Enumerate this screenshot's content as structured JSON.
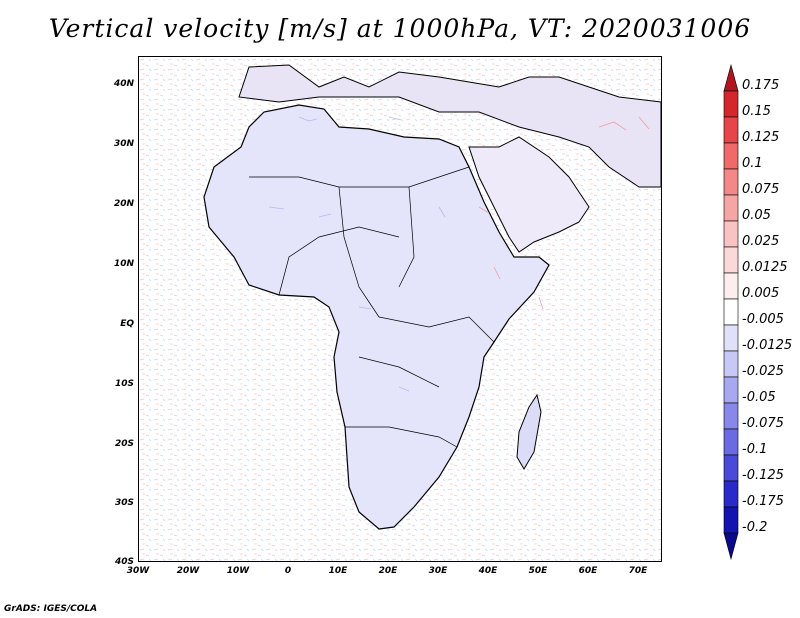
{
  "title": "Vertical velocity [m/s] at 1000hPa, VT: 2020031006",
  "footer": "GrADS: IGES/COLA",
  "map": {
    "region": "Africa",
    "longitude_ticks": [
      "30W",
      "20W",
      "10W",
      "0",
      "10E",
      "20E",
      "30E",
      "40E",
      "50E",
      "60E",
      "70E"
    ],
    "latitude_ticks": [
      "40N",
      "30N",
      "20N",
      "10N",
      "EQ",
      "10S",
      "20S",
      "30S",
      "40S"
    ]
  },
  "legend": {
    "levels": [
      "0.175",
      "0.15",
      "0.125",
      "0.1",
      "0.075",
      "0.05",
      "0.025",
      "0.0125",
      "0.005",
      "-0.005",
      "-0.0125",
      "-0.025",
      "-0.05",
      "-0.075",
      "-0.1",
      "-0.125",
      "-0.175",
      "-0.2"
    ],
    "colors": [
      "#b0141e",
      "#d4272d",
      "#e6464a",
      "#f06a6a",
      "#f28888",
      "#f6a5a5",
      "#f9c3c3",
      "#fbd9d9",
      "#fdeeee",
      "#ffffff",
      "#e0e0fb",
      "#c8c8f6",
      "#a8a8f0",
      "#8888ea",
      "#6a6ae2",
      "#4a4ad8",
      "#2a2acb",
      "#1414b0",
      "#0a0a8a"
    ]
  }
}
